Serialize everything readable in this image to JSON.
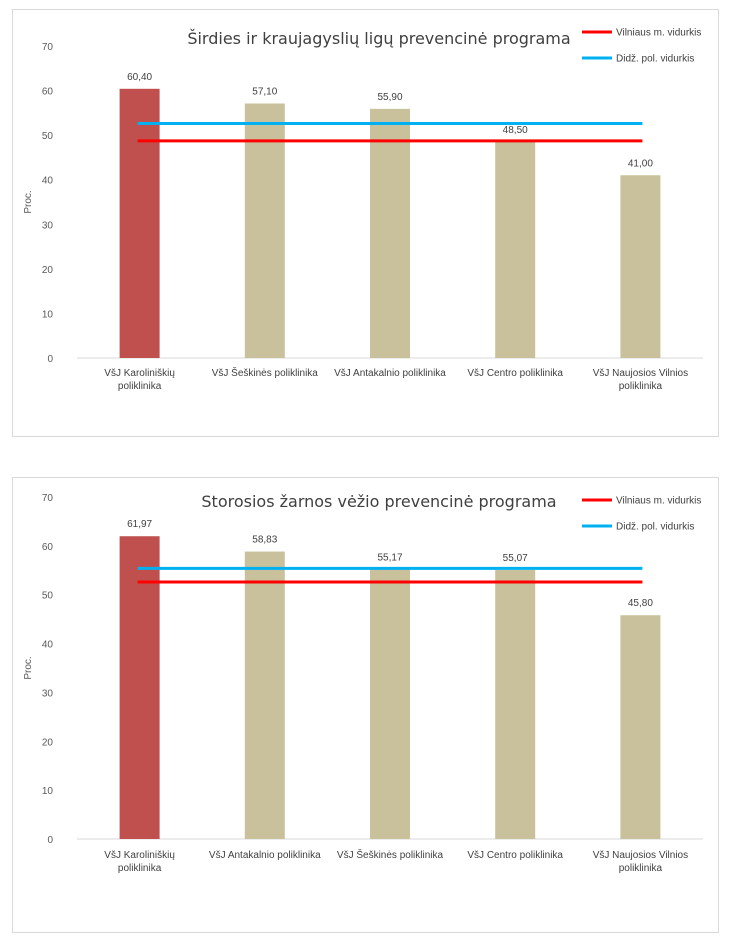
{
  "chart_data": [
    {
      "type": "bar",
      "title": "Širdies ir kraujagyslių ligų prevencinė programa",
      "ylabel": "Proc.",
      "xlabel": "",
      "ylim": [
        0,
        70
      ],
      "yticks": [
        0,
        10,
        20,
        30,
        40,
        50,
        60,
        70
      ],
      "grid": false,
      "legend_position": "top-right",
      "categories": [
        [
          "VšJ Karoliniškių",
          "poliklinika"
        ],
        [
          "VšJ Šeškinės poliklinika"
        ],
        [
          "VšJ Antakalnio poliklinika"
        ],
        [
          "VšJ Centro poliklinika"
        ],
        [
          "VšJ Naujosios Vilnios",
          "poliklinika"
        ]
      ],
      "values": [
        60.4,
        57.1,
        55.9,
        48.5,
        41.0
      ],
      "value_labels": [
        "60,40",
        "57,10",
        "55,90",
        "48,50",
        "41,00"
      ],
      "bar_colors": [
        "#c0504d",
        "#c9c19b",
        "#c9c19b",
        "#c9c19b",
        "#c9c19b"
      ],
      "reference_lines": [
        {
          "name": "Vilniaus m. vidurkis",
          "value": 48.7,
          "color": "#ff0000"
        },
        {
          "name": "Didž. pol. vidurkis",
          "value": 52.6,
          "color": "#00b0f0"
        }
      ]
    },
    {
      "type": "bar",
      "title": "Storosios žarnos vėžio prevencinė programa",
      "ylabel": "Proc.",
      "xlabel": "",
      "ylim": [
        0,
        70
      ],
      "yticks": [
        0,
        10,
        20,
        30,
        40,
        50,
        60,
        70
      ],
      "grid": false,
      "legend_position": "top-right",
      "categories": [
        [
          "VšJ Karoliniškių",
          "poliklinika"
        ],
        [
          "VšJ Antakalnio poliklinika"
        ],
        [
          "VšJ Šeškinės poliklinika"
        ],
        [
          "VšJ Centro poliklinika"
        ],
        [
          "VšJ Naujosios Vilnios",
          "poliklinika"
        ]
      ],
      "values": [
        61.97,
        58.83,
        55.17,
        55.07,
        45.8
      ],
      "value_labels": [
        "61,97",
        "58,83",
        "55,17",
        "55,07",
        "45,80"
      ],
      "bar_colors": [
        "#c0504d",
        "#c9c19b",
        "#c9c19b",
        "#c9c19b",
        "#c9c19b"
      ],
      "reference_lines": [
        {
          "name": "Vilniaus m. vidurkis",
          "value": 52.6,
          "color": "#ff0000"
        },
        {
          "name": "Didž. pol. vidurkis",
          "value": 55.4,
          "color": "#00b0f0"
        }
      ]
    }
  ]
}
